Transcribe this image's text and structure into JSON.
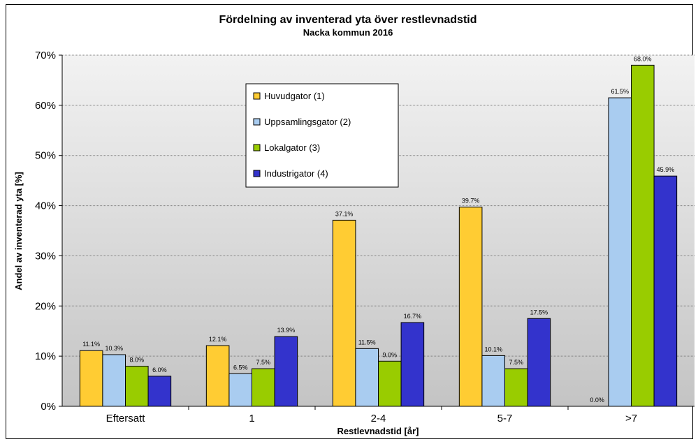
{
  "chart_data": {
    "type": "bar",
    "title": "Fördelning av inventerad yta över restlevnadstid",
    "subtitle": "Nacka kommun 2016",
    "xlabel": "Restlevnadstid [år]",
    "ylabel": "Andel av inventerad yta [%]",
    "ylim": [
      0,
      70
    ],
    "yticks": [
      "0%",
      "10%",
      "20%",
      "30%",
      "40%",
      "50%",
      "60%",
      "70%"
    ],
    "grid": true,
    "legend_position": "upper-center",
    "categories": [
      "Eftersatt",
      "1",
      "2-4",
      "5-7",
      ">7"
    ],
    "series": [
      {
        "name": "Huvudgator (1)",
        "color": "#FFCC33",
        "values": [
          11.1,
          12.1,
          37.1,
          39.7,
          0.0
        ],
        "labels": [
          "11.1%",
          "12.1%",
          "37.1%",
          "39.7%",
          "0.0%"
        ]
      },
      {
        "name": "Uppsamlingsgator (2)",
        "color": "#A9CCF0",
        "values": [
          10.3,
          6.5,
          11.5,
          10.1,
          61.5
        ],
        "labels": [
          "10.3%",
          "6.5%",
          "11.5%",
          "10.1%",
          "61.5%"
        ]
      },
      {
        "name": "Lokalgator (3)",
        "color": "#99CC00",
        "values": [
          8.0,
          7.5,
          9.0,
          7.5,
          68.0
        ],
        "labels": [
          "8.0%",
          "7.5%",
          "9.0%",
          "7.5%",
          "68.0%"
        ]
      },
      {
        "name": "Industrigator (4)",
        "color": "#3333CC",
        "values": [
          6.0,
          13.9,
          16.7,
          17.5,
          45.9
        ],
        "labels": [
          "6.0%",
          "13.9%",
          "16.7%",
          "17.5%",
          "45.9%"
        ]
      }
    ]
  }
}
